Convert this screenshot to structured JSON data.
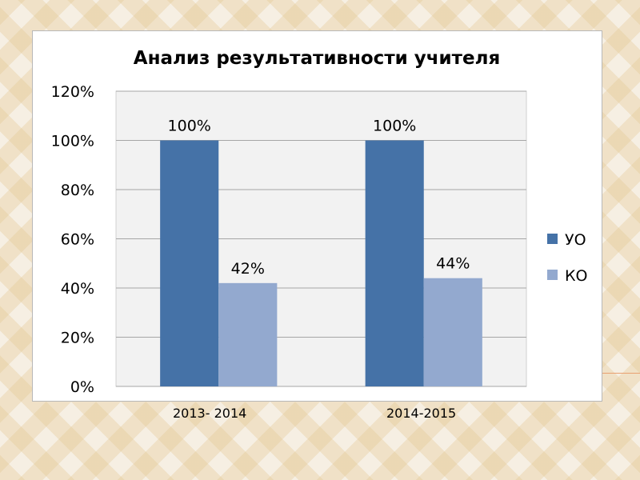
{
  "chart_data": {
    "type": "bar",
    "title": "Анализ результативности учителя",
    "categories": [
      "2013- 2014",
      "2014-2015"
    ],
    "series": [
      {
        "name": "УО",
        "values": [
          100,
          100
        ],
        "labels": [
          "100%",
          "100%"
        ],
        "color": "#4572a7"
      },
      {
        "name": "КО",
        "values": [
          42,
          44
        ],
        "labels": [
          "42%",
          "44%"
        ],
        "color": "#93a9cf"
      }
    ],
    "ylim": [
      0,
      120
    ],
    "yticks": [
      0,
      20,
      40,
      60,
      80,
      100,
      120
    ],
    "ytick_labels": [
      "0%",
      "20%",
      "40%",
      "60%",
      "80%",
      "100%",
      "120%"
    ],
    "grid": true,
    "legend": "right"
  },
  "colors": {
    "plot_background": "#f2f2f2",
    "gridline": "#a6a6a6"
  }
}
